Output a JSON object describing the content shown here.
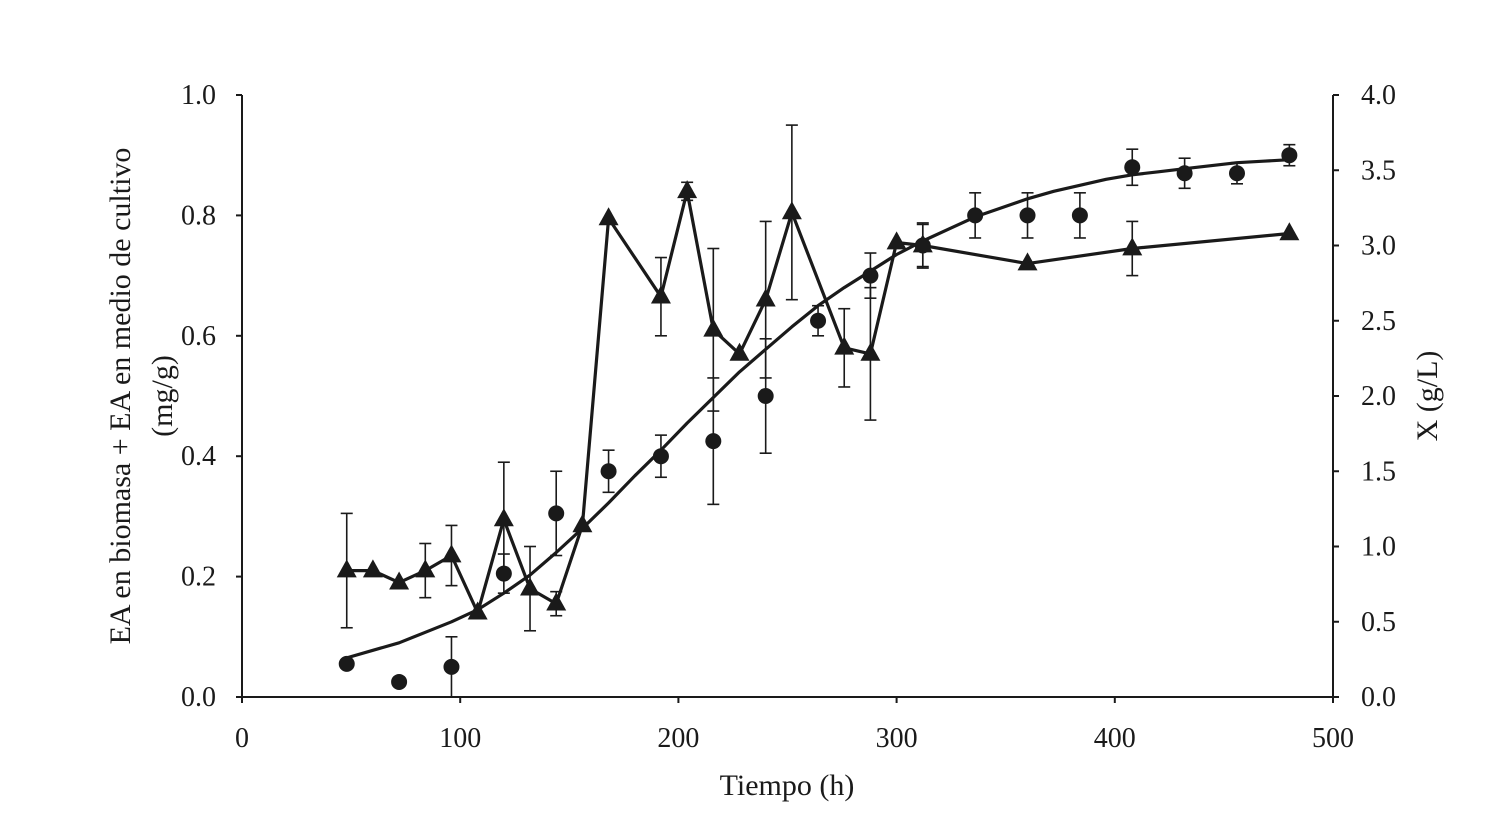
{
  "chart_data": {
    "type": "line",
    "xlabel": "Tiempo (h)",
    "ylabel_lines": [
      "EA  en biomasa + EA en medio de cultivo",
      "(mg/g)"
    ],
    "y2label": "X (g/L)",
    "xlim": [
      0,
      500
    ],
    "ylim": [
      0,
      1.0
    ],
    "y2lim": [
      0,
      4.0
    ],
    "x_ticks": [
      "0",
      "100",
      "200",
      "300",
      "400",
      "500"
    ],
    "y_ticks": [
      "0.0",
      "0.2",
      "0.4",
      "0.6",
      "0.8",
      "1.0"
    ],
    "y2_ticks": [
      "0.0",
      "0.5",
      "1.0",
      "1.5",
      "2.0",
      "2.5",
      "3.0",
      "3.5",
      "4.0"
    ],
    "series": [
      {
        "name": "EA en biomasa + EA en medio de cultivo",
        "axis": "left",
        "marker": "triangle",
        "connected": true,
        "points": [
          {
            "x": 48,
            "y": 0.21,
            "err": 0.095
          },
          {
            "x": 60,
            "y": 0.21,
            "err": 0
          },
          {
            "x": 72,
            "y": 0.19,
            "err": 0
          },
          {
            "x": 84,
            "y": 0.21,
            "err": 0.045
          },
          {
            "x": 96,
            "y": 0.235,
            "err": 0.05
          },
          {
            "x": 108,
            "y": 0.14,
            "err": 0
          },
          {
            "x": 120,
            "y": 0.295,
            "err": 0.095
          },
          {
            "x": 132,
            "y": 0.18,
            "err": 0.07
          },
          {
            "x": 144,
            "y": 0.155,
            "err": 0.02
          },
          {
            "x": 156,
            "y": 0.285,
            "err": 0
          },
          {
            "x": 168,
            "y": 0.795,
            "err": 0
          },
          {
            "x": 192,
            "y": 0.665,
            "err": 0.065
          },
          {
            "x": 204,
            "y": 0.84,
            "err": 0.015
          },
          {
            "x": 216,
            "y": 0.61,
            "err": 0.135
          },
          {
            "x": 228,
            "y": 0.57,
            "err": 0
          },
          {
            "x": 240,
            "y": 0.66,
            "err": 0.13
          },
          {
            "x": 252,
            "y": 0.805,
            "err": 0.145
          },
          {
            "x": 276,
            "y": 0.58,
            "err": 0.065
          },
          {
            "x": 288,
            "y": 0.57,
            "err": 0.11
          },
          {
            "x": 300,
            "y": 0.755,
            "err": 0
          },
          {
            "x": 312,
            "y": 0.75,
            "err": 0.035
          },
          {
            "x": 360,
            "y": 0.72,
            "err": 0
          },
          {
            "x": 408,
            "y": 0.745,
            "err": 0.045
          },
          {
            "x": 480,
            "y": 0.77,
            "err": 0
          }
        ]
      },
      {
        "name": "X (g/L)",
        "axis": "right",
        "marker": "circle",
        "connected": false,
        "points": [
          {
            "x": 48,
            "y": 0.22,
            "err": 0
          },
          {
            "x": 72,
            "y": 0.1,
            "err": 0
          },
          {
            "x": 96,
            "y": 0.2,
            "err": 0.2
          },
          {
            "x": 120,
            "y": 0.82,
            "err": 0.13
          },
          {
            "x": 144,
            "y": 1.22,
            "err": 0.28
          },
          {
            "x": 168,
            "y": 1.5,
            "err": 0.14
          },
          {
            "x": 192,
            "y": 1.6,
            "err": 0.14
          },
          {
            "x": 216,
            "y": 1.7,
            "err": 0.42
          },
          {
            "x": 240,
            "y": 2.0,
            "err": 0.38
          },
          {
            "x": 264,
            "y": 2.5,
            "err": 0.1
          },
          {
            "x": 288,
            "y": 2.8,
            "err": 0.15
          },
          {
            "x": 312,
            "y": 3.0,
            "err": 0.15
          },
          {
            "x": 336,
            "y": 3.2,
            "err": 0.15
          },
          {
            "x": 360,
            "y": 3.2,
            "err": 0.15
          },
          {
            "x": 384,
            "y": 3.2,
            "err": 0.15
          },
          {
            "x": 408,
            "y": 3.52,
            "err": 0.12
          },
          {
            "x": 432,
            "y": 3.48,
            "err": 0.1
          },
          {
            "x": 456,
            "y": 3.48,
            "err": 0.07
          },
          {
            "x": 480,
            "y": 3.6,
            "err": 0.07
          }
        ]
      },
      {
        "name": "X (g/L) ajuste",
        "axis": "right",
        "marker": "none",
        "type": "fit",
        "x": [
          48,
          60,
          72,
          84,
          96,
          108,
          120,
          132,
          144,
          156,
          168,
          180,
          192,
          204,
          216,
          228,
          240,
          252,
          264,
          276,
          288,
          300,
          312,
          324,
          336,
          348,
          360,
          372,
          384,
          396,
          408,
          420,
          432,
          444,
          456,
          468,
          480
        ],
        "y": [
          0.26,
          0.31,
          0.36,
          0.43,
          0.5,
          0.58,
          0.69,
          0.81,
          0.96,
          1.12,
          1.29,
          1.47,
          1.64,
          1.82,
          1.99,
          2.16,
          2.31,
          2.46,
          2.6,
          2.72,
          2.83,
          2.94,
          3.03,
          3.11,
          3.19,
          3.25,
          3.31,
          3.36,
          3.4,
          3.44,
          3.47,
          3.49,
          3.51,
          3.53,
          3.55,
          3.56,
          3.57
        ]
      }
    ]
  }
}
